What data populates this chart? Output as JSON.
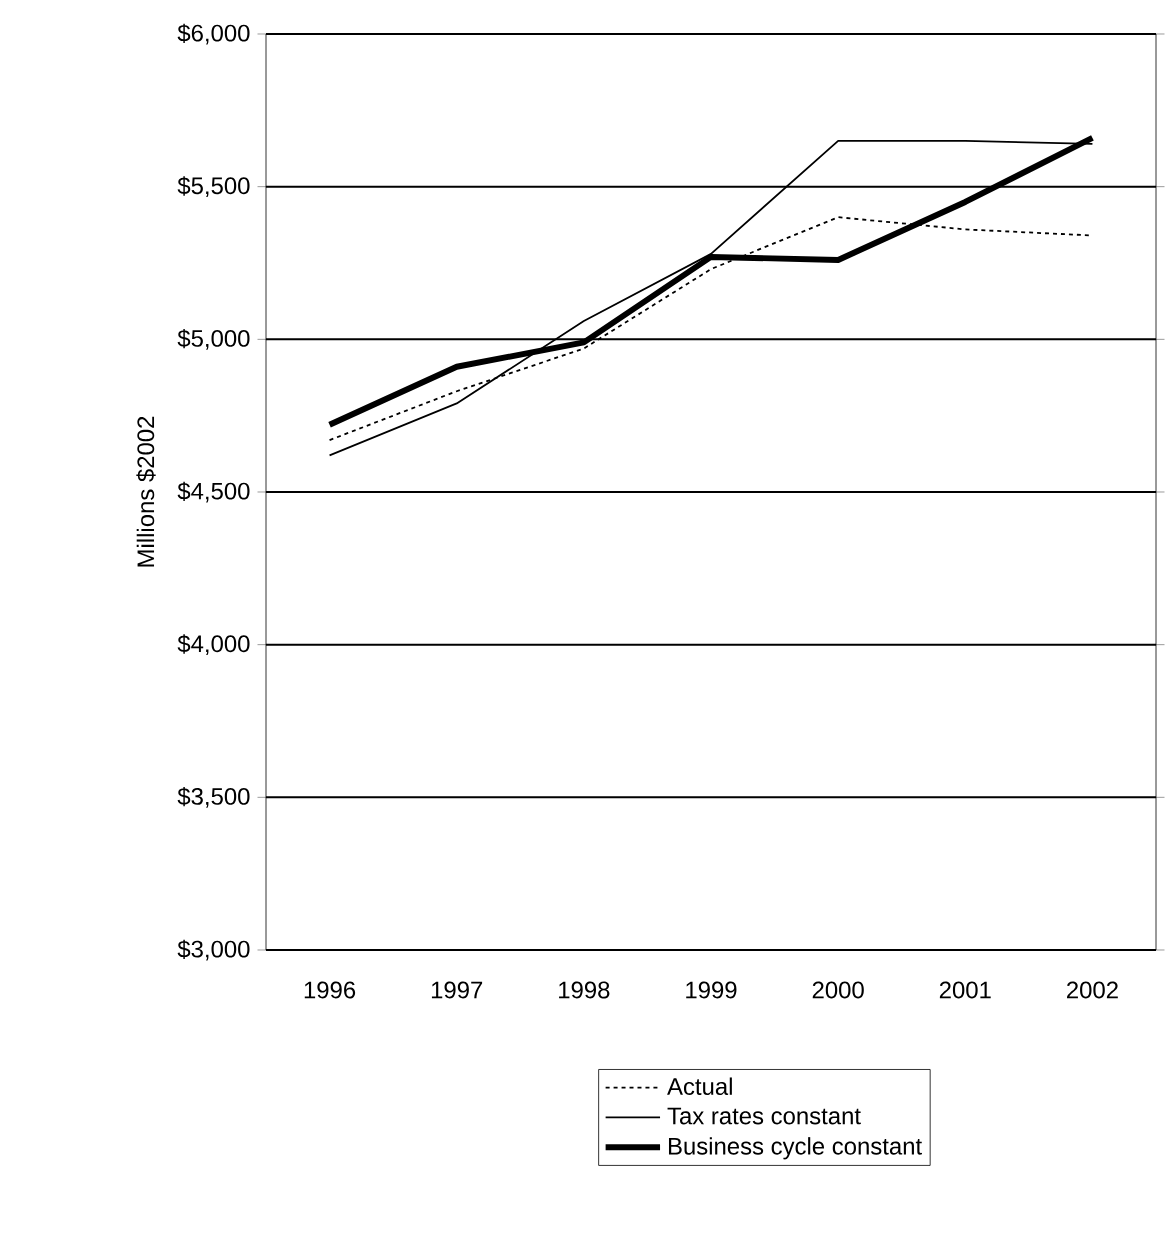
{
  "chart_data": {
    "type": "line",
    "ylabel": "Millions $2002",
    "categories": [
      "1996",
      "1997",
      "1998",
      "1999",
      "2000",
      "2001",
      "2002"
    ],
    "series": [
      {
        "name": "Actual",
        "color": "#000000",
        "line_style": "dotted",
        "values": [
          4670,
          4830,
          4970,
          5230,
          5400,
          5360,
          5340
        ]
      },
      {
        "name": "Tax rates constant",
        "color": "#000000",
        "line_style": "solid",
        "values": [
          4620,
          4790,
          5060,
          5280,
          5650,
          5650,
          5640
        ]
      },
      {
        "name": "Business cycle constant",
        "color": "#000000",
        "line_style": "solid",
        "values": [
          4720,
          4910,
          4990,
          5270,
          5260,
          5450,
          5660
        ]
      }
    ],
    "ylim": [
      3000,
      6000
    ],
    "yticks": [
      {
        "value": 3000,
        "label": "$3,000"
      },
      {
        "value": 3500,
        "label": "$3,500"
      },
      {
        "value": 4000,
        "label": "$4,000"
      },
      {
        "value": 4500,
        "label": "$4,500"
      },
      {
        "value": 5000,
        "label": "$5,000"
      },
      {
        "value": 5500,
        "label": "$5,500"
      },
      {
        "value": 6000,
        "label": "$6,000"
      }
    ],
    "grid": "y",
    "legend": "bottom",
    "marker": "none"
  }
}
